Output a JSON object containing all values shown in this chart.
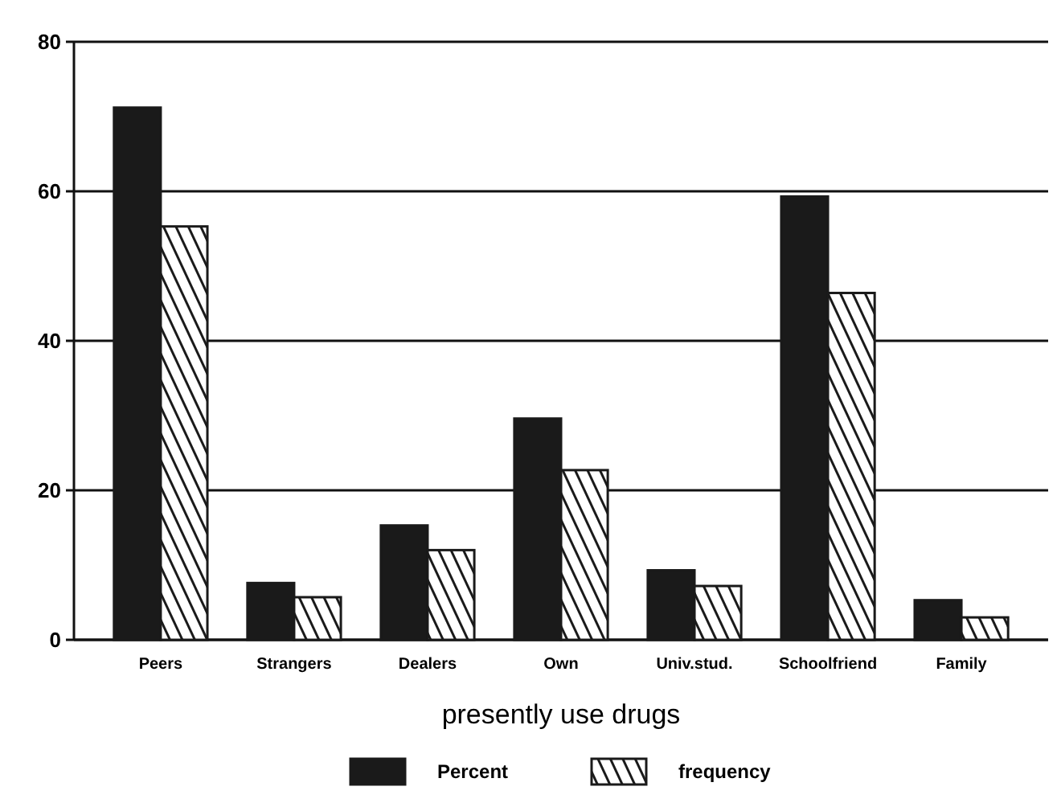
{
  "chart_data": {
    "type": "bar",
    "xlabel": "presently use drugs",
    "categories": [
      "Peers",
      "Strangers",
      "Dealers",
      "Own",
      "Univ.stud.",
      "Schoolfriend",
      "Family"
    ],
    "series": [
      {
        "name": "Percent",
        "color": "#1a1a1a",
        "values": [
          71.2,
          7.6,
          15.3,
          29.6,
          9.3,
          59.3,
          5.3
        ]
      },
      {
        "name": "frequency",
        "color": "#1a1a1a",
        "values": [
          55.3,
          5.7,
          12.0,
          22.7,
          7.2,
          46.4,
          3.0
        ]
      }
    ],
    "ylim": [
      0,
      80
    ],
    "yticks": [
      0,
      20,
      40,
      60,
      80
    ],
    "grid": "y",
    "legend": "bottom"
  }
}
